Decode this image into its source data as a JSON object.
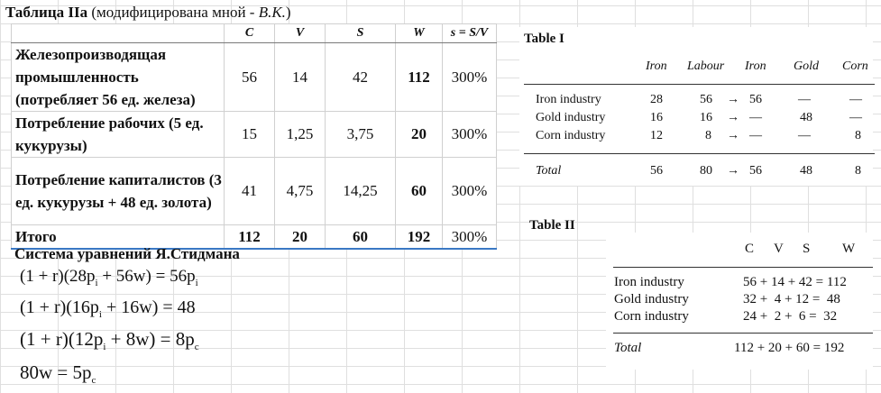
{
  "table_iia": {
    "title_bold": "Таблица IIa",
    "title_rest_a": " (модифицирована мной - ",
    "title_italic": "В.К.",
    "title_rest_b": ")",
    "headers": [
      "C",
      "V",
      "S",
      "W",
      "s = S/V"
    ],
    "rows": [
      {
        "name": "Железопроизводящая промышленность (потребляет 56 ед. железа)",
        "c": "56",
        "v": "14",
        "s": "42",
        "w": "112",
        "rate": "300%"
      },
      {
        "name": "Потребление рабочих (5 ед. кукурузы)",
        "c": "15",
        "v": "1,25",
        "s": "3,75",
        "w": "20",
        "rate": "300%"
      },
      {
        "name": "Потребление капиталистов (3 ед. кукурузы + 48 ед. золота)",
        "c": "41",
        "v": "4,75",
        "s": "14,25",
        "w": "60",
        "rate": "300%"
      },
      {
        "name": "Итого",
        "c": "112",
        "v": "20",
        "s": "60",
        "w": "192",
        "rate": "300%"
      }
    ]
  },
  "steedman": {
    "title": "Система уравнений Я.Стидмана",
    "eq1_main": "(1 + r)(28p",
    "eq1_mid": " + 56w) = 56p",
    "eq1_sub": "i",
    "eq2_main": "(1 + r)(16p",
    "eq2_mid": " + 16w) = 48",
    "eq2_sub": "i",
    "eq3_main": "(1 + r)(12p",
    "eq3_mid": " + 8w) = 8p",
    "eq3_sub1": "i",
    "eq3_sub2": "c",
    "eq4_main": "80w = 5p",
    "eq4_sub": "c"
  },
  "table_i": {
    "title": "Table I",
    "headers": [
      "Iron",
      "Labour",
      "Iron",
      "Gold",
      "Corn"
    ],
    "rows": [
      {
        "name": "Iron industry",
        "iron": "28",
        "labour": "56",
        "arrow": "→",
        "iron_out": "56",
        "gold": "—",
        "corn": "—"
      },
      {
        "name": "Gold industry",
        "iron": "16",
        "labour": "16",
        "arrow": "→",
        "iron_out": "—",
        "gold": "48",
        "corn": "—"
      },
      {
        "name": "Corn industry",
        "iron": "12",
        "labour": "8",
        "arrow": "→",
        "iron_out": "—",
        "gold": "—",
        "corn": "8"
      }
    ],
    "total": {
      "name": "Total",
      "iron": "56",
      "labour": "80",
      "arrow": "→",
      "iron_out": "56",
      "gold": "48",
      "corn": "8"
    }
  },
  "table_ii": {
    "title": "Table II",
    "headers": [
      "C",
      "V",
      "S",
      "W"
    ],
    "rows": [
      {
        "name": "Iron industry",
        "expr": "56 + 14 + 42 = 112"
      },
      {
        "name": "Gold industry",
        "expr": "32 +  4 + 12 =  48"
      },
      {
        "name": "Corn industry",
        "expr": "24 +  2 +  6 =  32"
      }
    ],
    "total": {
      "name": "Total",
      "expr": "112 + 20 + 60 = 192"
    }
  }
}
